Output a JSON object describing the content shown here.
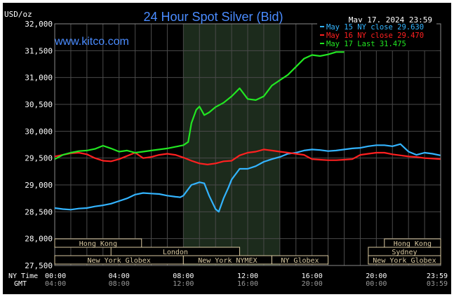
{
  "chart_data": {
    "type": "line",
    "title": "24 Hour Spot Silver (Bid)",
    "ylabel": "USD/oz",
    "timestamp": "May 17, 2024 23:59",
    "watermark": "www.kitco.com",
    "ylim": [
      27500,
      32000
    ],
    "yticks": [
      "32,000",
      "31,500",
      "31,000",
      "30,500",
      "30,000",
      "29,500",
      "29,000",
      "28,500",
      "28,000",
      "27,500"
    ],
    "ytick_values": [
      32000,
      31500,
      31000,
      30500,
      30000,
      29500,
      29000,
      28500,
      28000,
      27500
    ],
    "x_row_label_ny": "NY Time",
    "x_row_label_gmt": "GMT",
    "xticks_ny": [
      "00:00",
      "04:00",
      "08:00",
      "12:00",
      "16:00",
      "20:00",
      "23:59"
    ],
    "xticks_gmt": [
      "04:00",
      "08:00",
      "12:00",
      "16:00",
      "20:00",
      "00:00",
      "03:59"
    ],
    "xtick_hours": [
      0,
      4,
      8,
      12,
      16,
      20,
      24
    ],
    "grid": true,
    "legend_position": "top-right",
    "colors": {
      "background": "#000000",
      "grid": "#4a4a4a",
      "session_highlight": "#1c2b1c",
      "title": "#4a8cff",
      "watermark": "#4a8cff",
      "session_box": "#d8c8a0",
      "axis_text": "#ffffff"
    },
    "highlight_hours": [
      8,
      14
    ],
    "sessions": [
      {
        "label": "Hong Kong",
        "start": 0,
        "end": 5.4,
        "row": 0
      },
      {
        "label": "Hong Kong",
        "start": 20.5,
        "end": 24,
        "row": 0
      },
      {
        "label": "London",
        "start": 3.5,
        "end": 11.5,
        "row": 1
      },
      {
        "label": "Sydney",
        "start": 19.5,
        "end": 24,
        "row": 1
      },
      {
        "label": "New York Globex",
        "start": 0,
        "end": 8,
        "row": 2
      },
      {
        "label": "New York NYMEX",
        "start": 8,
        "end": 13.5,
        "row": 2
      },
      {
        "label": "NY Globex",
        "start": 13.5,
        "end": 17,
        "row": 2
      },
      {
        "label": "New York Globex",
        "start": 19.5,
        "end": 24,
        "row": 2
      }
    ],
    "series": [
      {
        "name": "May 15",
        "legend": "May 15 NY close 29.630",
        "color": "#33b4ff",
        "x": [
          0,
          0.5,
          1,
          1.5,
          2,
          2.5,
          3,
          3.5,
          4,
          4.5,
          5,
          5.5,
          6,
          6.5,
          7,
          7.5,
          7.8,
          8,
          8.5,
          9,
          9.3,
          9.6,
          10,
          10.2,
          10.5,
          10.8,
          11,
          11.5,
          12,
          12.5,
          13,
          13.5,
          14,
          14.5,
          15,
          15.5,
          16,
          16.5,
          17,
          17.5,
          18,
          18.5,
          19,
          19.5,
          20,
          20.5,
          21,
          21.5,
          22,
          22.5,
          23,
          23.5,
          23.98
        ],
        "y": [
          28570,
          28550,
          28540,
          28560,
          28570,
          28600,
          28620,
          28650,
          28700,
          28750,
          28820,
          28850,
          28840,
          28830,
          28800,
          28780,
          28770,
          28800,
          29000,
          29050,
          29030,
          28800,
          28550,
          28500,
          28750,
          28950,
          29100,
          29300,
          29300,
          29350,
          29430,
          29480,
          29520,
          29580,
          29600,
          29640,
          29660,
          29650,
          29630,
          29640,
          29660,
          29680,
          29690,
          29720,
          29740,
          29740,
          29720,
          29760,
          29620,
          29560,
          29600,
          29580,
          29550
        ]
      },
      {
        "name": "May 16",
        "legend": "May 16 NY close 29.470",
        "color": "#ff2020",
        "x": [
          0,
          0.5,
          1,
          1.5,
          2,
          2.5,
          3,
          3.5,
          4,
          4.5,
          5,
          5.5,
          6,
          6.5,
          7,
          7.5,
          8,
          8.5,
          9,
          9.5,
          10,
          10.5,
          11,
          11.5,
          12,
          12.5,
          13,
          13.5,
          14,
          14.5,
          15,
          15.5,
          16,
          16.5,
          17,
          17.5,
          18,
          18.5,
          19,
          19.5,
          20,
          20.5,
          21,
          21.5,
          22,
          22.5,
          23,
          23.5,
          23.98
        ],
        "y": [
          29530,
          29560,
          29590,
          29600,
          29570,
          29500,
          29450,
          29440,
          29480,
          29540,
          29600,
          29500,
          29520,
          29560,
          29580,
          29560,
          29510,
          29450,
          29400,
          29380,
          29400,
          29440,
          29450,
          29550,
          29600,
          29620,
          29660,
          29640,
          29620,
          29600,
          29580,
          29560,
          29480,
          29470,
          29460,
          29460,
          29470,
          29480,
          29560,
          29580,
          29600,
          29600,
          29570,
          29550,
          29530,
          29520,
          29500,
          29490,
          29480
        ]
      },
      {
        "name": "May 17",
        "legend": "May 17 Last 31.475",
        "color": "#22e622",
        "x": [
          0,
          0.5,
          1,
          1.5,
          2,
          2.5,
          3,
          3.5,
          4,
          4.5,
          5,
          5.5,
          6,
          6.5,
          7,
          7.5,
          8,
          8.3,
          8.5,
          8.8,
          9,
          9.3,
          9.6,
          10,
          10.5,
          11,
          11.5,
          12,
          12.5,
          13,
          13.5,
          14,
          14.5,
          15,
          15.5,
          16,
          16.5,
          17,
          17.5,
          18
        ],
        "y": [
          29480,
          29560,
          29600,
          29630,
          29640,
          29670,
          29730,
          29680,
          29620,
          29640,
          29600,
          29620,
          29640,
          29660,
          29680,
          29710,
          29740,
          29800,
          30150,
          30400,
          30460,
          30300,
          30350,
          30450,
          30530,
          30650,
          30800,
          30600,
          30580,
          30650,
          30850,
          30950,
          31050,
          31200,
          31350,
          31420,
          31400,
          31430,
          31475,
          31475
        ]
      }
    ]
  }
}
